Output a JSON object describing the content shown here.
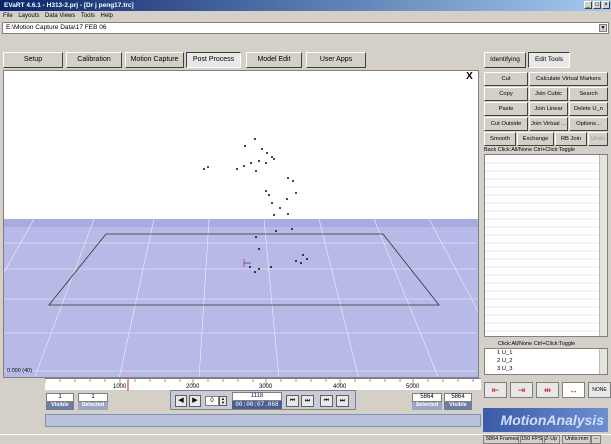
{
  "window": {
    "title": "EVaRT 4.6.1 - H313-2.prj - [Dr j peng17.trc]"
  },
  "menu": [
    "File",
    "Layouts",
    "Data Views",
    "Tools",
    "Help"
  ],
  "path": "E:\\Motion Capture Data\\17 FEB 06",
  "main_tabs": [
    {
      "label": "Setup"
    },
    {
      "label": "Calibration"
    },
    {
      "label": "Motion Capture"
    },
    {
      "label": "Post Process"
    },
    {
      "label": "Model Edit"
    },
    {
      "label": "User Apps"
    }
  ],
  "right_tabs": [
    {
      "label": "Identifying"
    },
    {
      "label": "Edit Tools"
    }
  ],
  "edit_buttons": [
    [
      "Cut",
      "Calculate Virtual Markers"
    ],
    [
      "Copy",
      "Join Cubic",
      "Search"
    ],
    [
      "Paste",
      "Join Linear",
      "Delete U_n"
    ],
    [
      "Cut Outside",
      "Join Virtual ...",
      "Options..."
    ],
    [
      "Smooth",
      "Exchange",
      "RB Join",
      "Undo"
    ]
  ],
  "list_header": [
    "Back",
    "Click:All/None",
    "Ctrl+Click:Toggle"
  ],
  "list2_header": "Click:All/None  Ctrl+Click:Toggle",
  "unnamed_markers": [
    "1 U_1",
    "2 U_2",
    "3 U_3"
  ],
  "viewport": {
    "coord_label": "0.000 (40)",
    "close": "X"
  },
  "timeline": {
    "ticks": [
      "1000",
      "2000",
      "3000",
      "4000",
      "5000"
    ]
  },
  "controls": {
    "start_frame": "1",
    "left_selected": "1",
    "visible_label": "Visible",
    "selected_label": "Selected",
    "step": "0",
    "current_frame": "1118",
    "current_time": "00:00:07.068",
    "end_selected": "5864",
    "end_visible": "5864"
  },
  "right_controls": {
    "none_label": "NONE"
  },
  "brand": "MotionAnalysis",
  "status": {
    "frames": "5864 Frames",
    "fps": "150 FPS",
    "up": "Z-Up",
    "units": "Units:mm",
    "extra": "--"
  }
}
